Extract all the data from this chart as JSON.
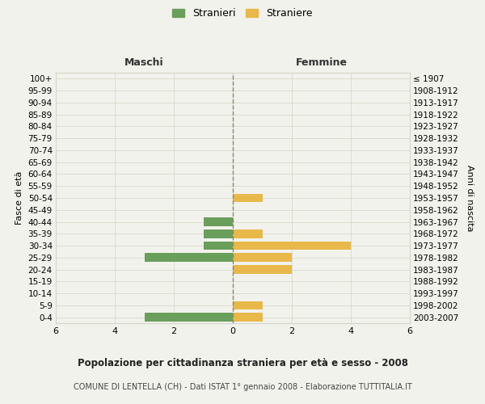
{
  "age_groups": [
    "100+",
    "95-99",
    "90-94",
    "85-89",
    "80-84",
    "75-79",
    "70-74",
    "65-69",
    "60-64",
    "55-59",
    "50-54",
    "45-49",
    "40-44",
    "35-39",
    "30-34",
    "25-29",
    "20-24",
    "15-19",
    "10-14",
    "5-9",
    "0-4"
  ],
  "birth_years": [
    "≤ 1907",
    "1908-1912",
    "1913-1917",
    "1918-1922",
    "1923-1927",
    "1928-1932",
    "1933-1937",
    "1938-1942",
    "1943-1947",
    "1948-1952",
    "1953-1957",
    "1958-1962",
    "1963-1967",
    "1968-1972",
    "1973-1977",
    "1978-1982",
    "1983-1987",
    "1988-1992",
    "1993-1997",
    "1998-2002",
    "2003-2007"
  ],
  "males": [
    0,
    0,
    0,
    0,
    0,
    0,
    0,
    0,
    0,
    0,
    0,
    0,
    1,
    1,
    1,
    3,
    0,
    0,
    0,
    0,
    3
  ],
  "females": [
    0,
    0,
    0,
    0,
    0,
    0,
    0,
    0,
    0,
    0,
    1,
    0,
    0,
    1,
    4,
    2,
    2,
    0,
    0,
    1,
    1
  ],
  "male_color": "#6a9e5b",
  "female_color": "#e8b84b",
  "bg_color": "#f2f2ed",
  "grid_color": "#d8d8c8",
  "title": "Popolazione per cittadinanza straniera per età e sesso - 2008",
  "subtitle": "COMUNE DI LENTELLA (CH) - Dati ISTAT 1° gennaio 2008 - Elaborazione TUTTITALIA.IT",
  "legend_male": "Stranieri",
  "legend_female": "Straniere",
  "label_maschi": "Maschi",
  "label_femmine": "Femmine",
  "ylabel_left": "Fasce di età",
  "ylabel_right": "Anni di nascita",
  "xlim": 6
}
